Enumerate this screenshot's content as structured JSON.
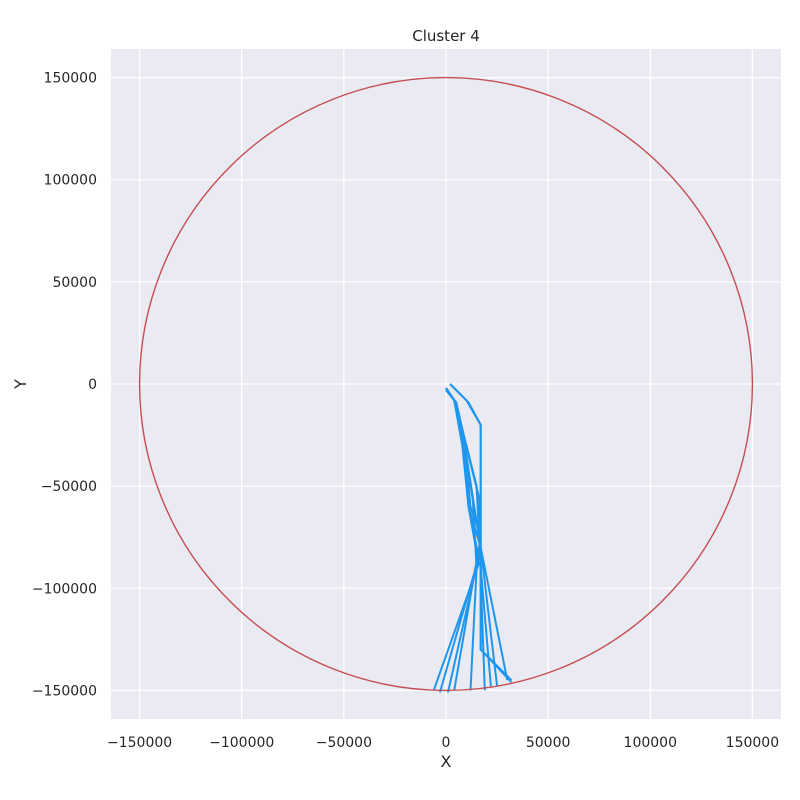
{
  "chart_data": {
    "type": "line",
    "title": "Cluster 4",
    "xlabel": "X",
    "ylabel": "Y",
    "xlim": [
      -164000,
      164000
    ],
    "ylim": [
      -164000,
      164000
    ],
    "xticks": [
      -150000,
      -100000,
      -50000,
      0,
      50000,
      100000,
      150000
    ],
    "yticks": [
      -150000,
      -100000,
      -50000,
      0,
      50000,
      100000,
      150000
    ],
    "xtick_labels": [
      "−150000",
      "−100000",
      "−50000",
      "0",
      "50000",
      "100000",
      "150000"
    ],
    "ytick_labels": [
      "−150000",
      "−100000",
      "−50000",
      "0",
      "50000",
      "100000",
      "150000"
    ],
    "grid": true,
    "background_color": "#eaeaf2",
    "grid_color": "#ffffff",
    "circle": {
      "center": [
        0,
        0
      ],
      "radius": 150000,
      "color": "#c44e52"
    },
    "series_color": "#1f96ee",
    "series": [
      {
        "x": [
          2000,
          10000,
          17000,
          17000,
          32000
        ],
        "y": [
          0,
          -8000,
          -20000,
          -130000,
          -146000
        ]
      },
      {
        "x": [
          2000,
          11000,
          17000,
          17000,
          32000
        ],
        "y": [
          0,
          -9000,
          -20000,
          -130000,
          -145000
        ]
      },
      {
        "x": [
          0,
          4000,
          8000,
          11000,
          17000,
          30000
        ],
        "y": [
          -2000,
          -8000,
          -30000,
          -60000,
          -80000,
          -145000
        ]
      },
      {
        "x": [
          0,
          4000,
          8000,
          12000,
          17000,
          25000
        ],
        "y": [
          -2000,
          -8000,
          -25000,
          -50000,
          -80000,
          -148000
        ]
      },
      {
        "x": [
          0,
          4000,
          10000,
          15000,
          17000,
          22000
        ],
        "y": [
          -2000,
          -8000,
          -30000,
          -50000,
          -90000,
          -148000
        ]
      },
      {
        "x": [
          0,
          5000,
          11000,
          16000,
          17000,
          19000
        ],
        "y": [
          -3000,
          -9000,
          -35000,
          -55000,
          -95000,
          -150000
        ]
      },
      {
        "x": [
          0,
          5000,
          10000,
          13000,
          15000,
          12000
        ],
        "y": [
          -3000,
          -9000,
          -35000,
          -55000,
          -90000,
          -150000
        ]
      },
      {
        "x": [
          0,
          4000,
          9000,
          12000,
          17000,
          4000
        ],
        "y": [
          -2000,
          -8000,
          -30000,
          -60000,
          -75000,
          -150000
        ]
      },
      {
        "x": [
          0,
          4000,
          9000,
          13000,
          17000,
          1000
        ],
        "y": [
          -2000,
          -8000,
          -30000,
          -55000,
          -80000,
          -151000
        ]
      },
      {
        "x": [
          0,
          4000,
          9000,
          11000,
          16000,
          -3000
        ],
        "y": [
          -2000,
          -8000,
          -30000,
          -60000,
          -85000,
          -151000
        ]
      },
      {
        "x": [
          0,
          4000,
          9000,
          11000,
          16000,
          -6000
        ],
        "y": [
          -2000,
          -8000,
          -30000,
          -60000,
          -88000,
          -150000
        ]
      }
    ]
  }
}
